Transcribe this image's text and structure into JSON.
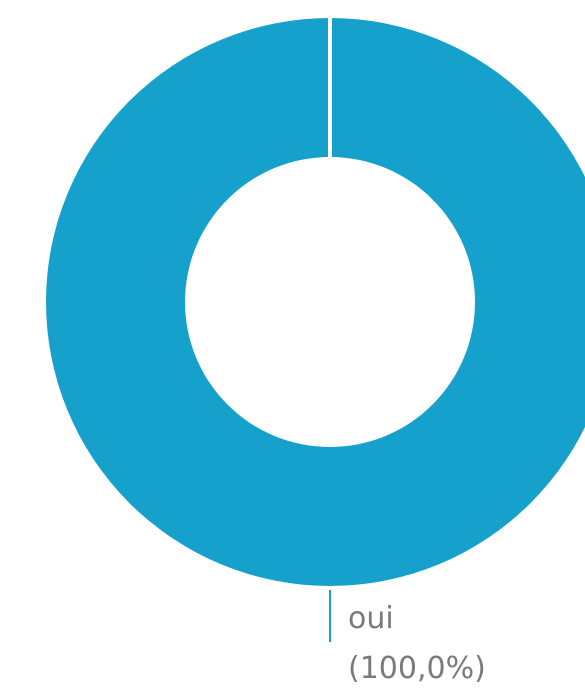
{
  "chart_data": {
    "type": "pie",
    "donut": true,
    "categories": [
      "oui"
    ],
    "values": [
      100
    ],
    "value_labels": [
      "(100,0%)"
    ],
    "colors": [
      "#16a1cd"
    ]
  }
}
